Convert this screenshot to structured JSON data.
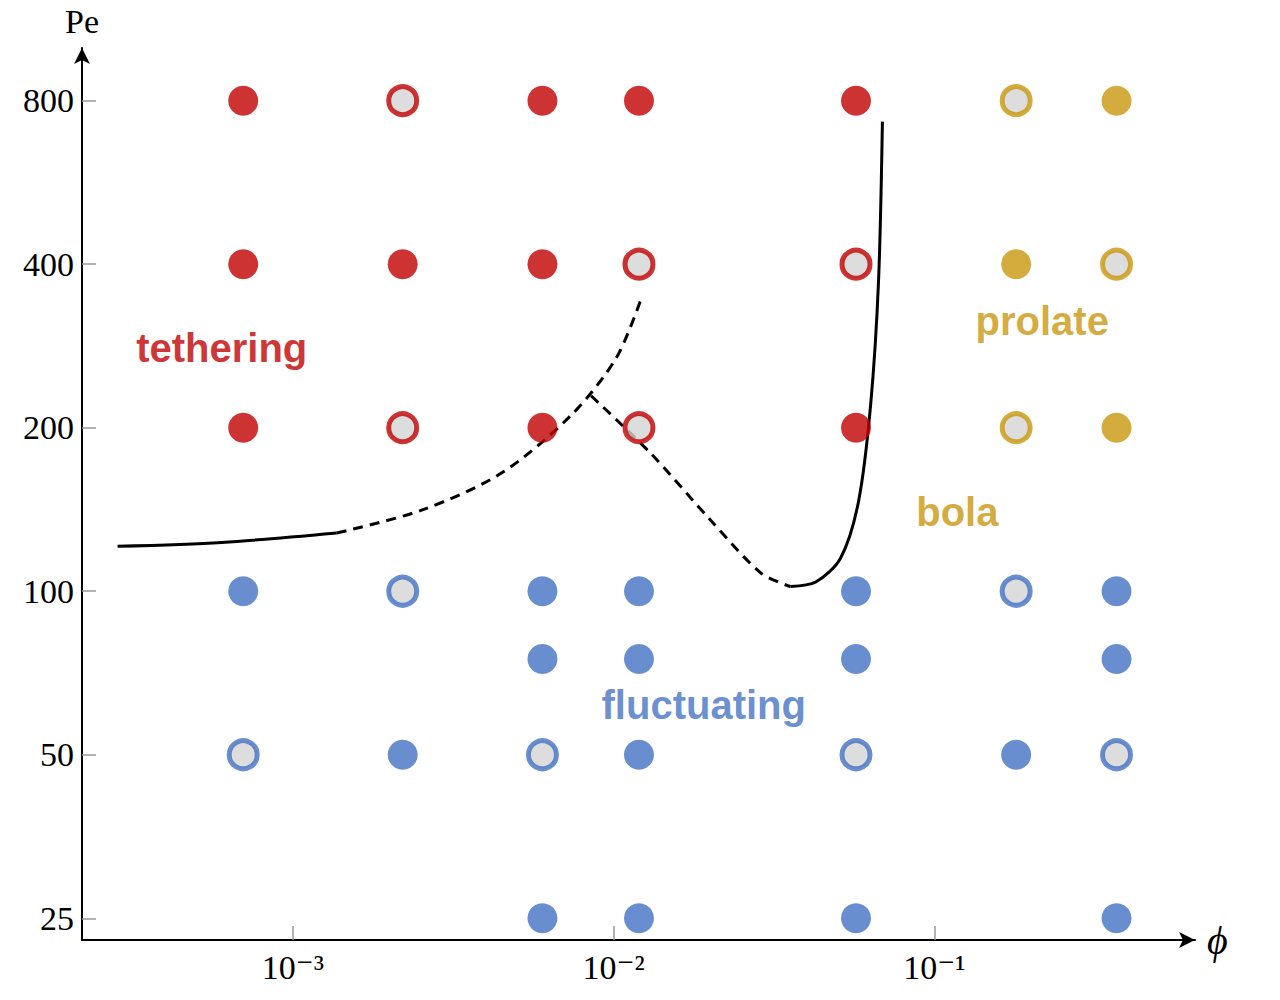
{
  "chart_data": {
    "type": "scatter",
    "x_label": "ϕ",
    "y_label": "Pe",
    "log": true,
    "grid": false,
    "xlim": [
      0.00022,
      0.65
    ],
    "xticks": [
      {
        "value": 0.001,
        "label": "10⁻³"
      },
      {
        "value": 0.01,
        "label": "10⁻²"
      },
      {
        "value": 0.1,
        "label": "10⁻¹"
      }
    ],
    "ylim": [
      22.8,
      1000
    ],
    "yticks": [
      25,
      50,
      100,
      200,
      400,
      800
    ],
    "series": [
      {
        "color": "#c00000",
        "marker": "circle",
        "x": [
          0.0007,
          0.006,
          0.012,
          0.057,
          0.0007,
          0.0022,
          0.006,
          0.0007,
          0.006,
          0.057
        ],
        "values": [
          800,
          800,
          800,
          800,
          400,
          400,
          400,
          200,
          200,
          200
        ]
      },
      {
        "color": "#c00000",
        "marker": "checkered",
        "x": [
          0.0022,
          0.012,
          0.057,
          0.0022,
          0.012
        ],
        "values": [
          800,
          400,
          400,
          200,
          200
        ]
      },
      {
        "color": "#c9960c",
        "marker": "circle",
        "x": [
          0.37,
          0.18,
          0.37
        ],
        "values": [
          800,
          400,
          200
        ]
      },
      {
        "color": "#c9960c",
        "marker": "checkered",
        "x": [
          0.18,
          0.37,
          0.18
        ],
        "values": [
          800,
          400,
          200
        ]
      },
      {
        "color": "#4472c4",
        "marker": "circle",
        "x": [
          0.0007,
          0.006,
          0.012,
          0.057,
          0.37,
          0.006,
          0.012,
          0.057,
          0.37,
          0.0022,
          0.012,
          0.18,
          0.006,
          0.012,
          0.057,
          0.37
        ],
        "values": [
          100,
          100,
          100,
          100,
          100,
          75,
          75,
          75,
          75,
          50,
          50,
          50,
          25,
          25,
          25,
          25
        ]
      },
      {
        "color": "#4472c4",
        "marker": "checkered",
        "x": [
          0.0022,
          0.18,
          0.0007,
          0.006,
          0.057,
          0.37
        ],
        "values": [
          100,
          100,
          50,
          50,
          50,
          50
        ]
      },
      {
        "type": "line",
        "line_style": "solid",
        "color": "#000000",
        "x": [
          0.000284,
          0.0006,
          0.00137
        ],
        "values": [
          121,
          123,
          128
        ]
      },
      {
        "type": "line",
        "line_style": "dashed",
        "color": "#000000",
        "x": [
          0.00137,
          0.00252,
          0.00447,
          0.00738,
          0.0102,
          0.0122
        ],
        "values": [
          128,
          141,
          165,
          211,
          269,
          346
        ]
      },
      {
        "type": "line",
        "line_style": "dashed",
        "color": "#000000",
        "x": [
          0.00851,
          0.0131,
          0.0201,
          0.0288,
          0.0356
        ],
        "values": [
          229,
          179,
          135,
          108,
          102
        ]
      },
      {
        "type": "line",
        "line_style": "solid",
        "color": "#000000",
        "x": [
          0.0356,
          0.0427,
          0.051,
          0.058,
          0.0633,
          0.067,
          0.0689
        ],
        "values": [
          102,
          104,
          115,
          146,
          220,
          372,
          732
        ]
      }
    ],
    "annotations": [
      {
        "text": "tethering",
        "x": 0.0006,
        "y": 280,
        "color": "#c00000"
      },
      {
        "text": "fluctuating",
        "x": 0.0191,
        "y": 61.7,
        "color": "#4472c4"
      },
      {
        "text": "prolate",
        "x": 0.217,
        "y": 315,
        "color": "#c9960c"
      },
      {
        "text": "bola",
        "x": 0.118,
        "y": 140,
        "color": "#c9960c"
      }
    ]
  }
}
